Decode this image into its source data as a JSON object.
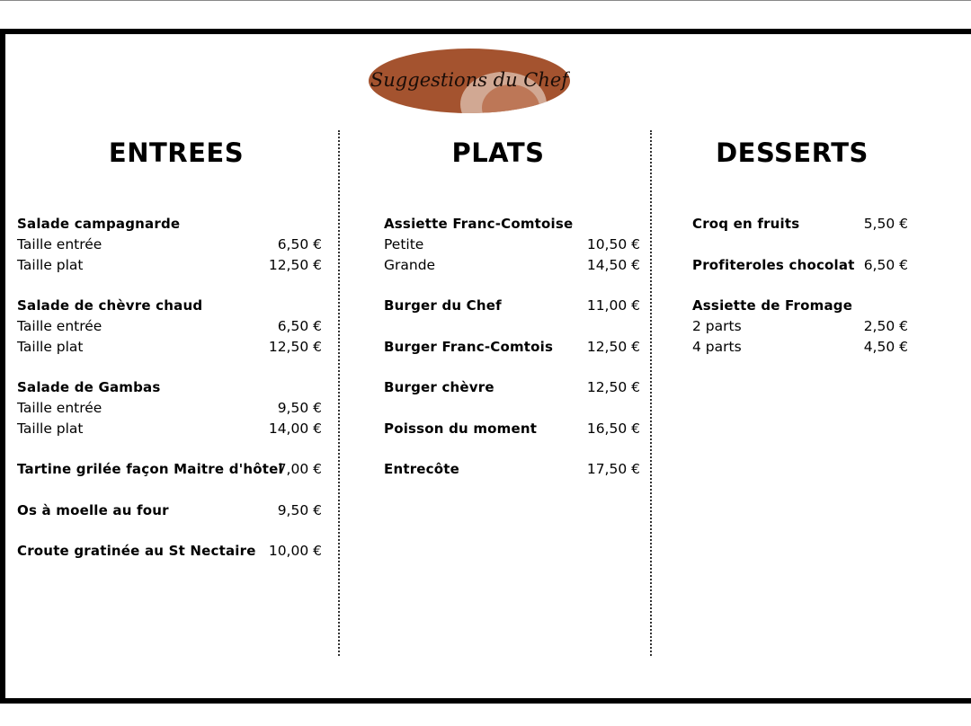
{
  "logo": {
    "text": "Suggestions du Chef",
    "color": "#a4532f"
  },
  "columns": [
    {
      "title": "ENTREES",
      "lines": [
        {
          "name": "Salade campagnarde",
          "price": "",
          "bold": true
        },
        {
          "name": "Taille entrée",
          "price": "6,50 €",
          "bold": false
        },
        {
          "name": "Taille plat",
          "price": "12,50 €",
          "bold": false
        },
        null,
        {
          "name": "Salade de chèvre chaud",
          "price": "",
          "bold": true
        },
        {
          "name": "Taille entrée",
          "price": "6,50 €",
          "bold": false
        },
        {
          "name": "Taille plat",
          "price": "12,50 €",
          "bold": false
        },
        null,
        {
          "name": "Salade de Gambas",
          "price": "",
          "bold": true
        },
        {
          "name": "Taille entrée",
          "price": "9,50 €",
          "bold": false
        },
        {
          "name": "Taille plat",
          "price": "14,00 €",
          "bold": false
        },
        null,
        {
          "name": "Tartine grilée façon Maitre d'hôtel",
          "price": "7,00 €",
          "bold": true
        },
        null,
        {
          "name": "Os à moelle au four",
          "price": "9,50 €",
          "bold": true
        },
        null,
        {
          "name": "Croute gratinée au St Nectaire",
          "price": "10,00 €",
          "bold": true
        }
      ]
    },
    {
      "title": "PLATS",
      "lines": [
        {
          "name": "Assiette Franc-Comtoise",
          "price": "",
          "bold": true
        },
        {
          "name": "Petite",
          "price": "10,50 €",
          "bold": false
        },
        {
          "name": "Grande",
          "price": "14,50 €",
          "bold": false
        },
        null,
        {
          "name": "Burger du Chef",
          "price": "11,00 €",
          "bold": true
        },
        null,
        {
          "name": "Burger Franc-Comtois",
          "price": "12,50 €",
          "bold": true
        },
        null,
        {
          "name": "Burger chèvre",
          "price": "12,50 €",
          "bold": true
        },
        null,
        {
          "name": "Poisson du moment",
          "price": "16,50 €",
          "bold": true
        },
        null,
        {
          "name": "Entrecôte",
          "price": "17,50 €",
          "bold": true
        }
      ]
    },
    {
      "title": "DESSERTS",
      "lines": [
        {
          "name": "Croq en fruits",
          "price": "5,50 €",
          "bold": true
        },
        null,
        {
          "name": "Profiteroles chocolat",
          "price": "6,50 €",
          "bold": true
        },
        null,
        {
          "name": "Assiette de Fromage",
          "price": "",
          "bold": true
        },
        {
          "name": "2 parts",
          "price": "2,50 €",
          "bold": false
        },
        {
          "name": "4 parts",
          "price": "4,50 €",
          "bold": false
        }
      ]
    }
  ]
}
